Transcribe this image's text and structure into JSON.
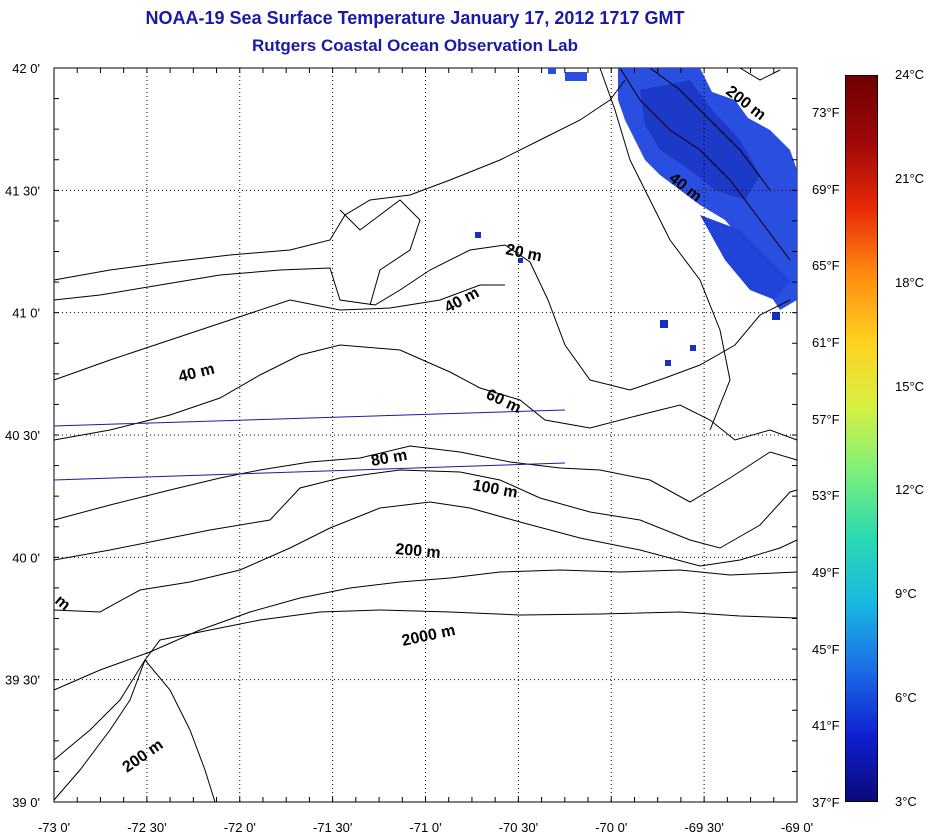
{
  "title": "NOAA-19 Sea Surface Temperature January 17, 2012 1717 GMT",
  "subtitle": "Rutgers Coastal Ocean Observation Lab",
  "map": {
    "lon_range": [
      -73,
      -69
    ],
    "lat_range": [
      39,
      42
    ],
    "grid": "dotted",
    "x_ticks": [
      "-73 0'",
      "-72 30'",
      "-72 0'",
      "-71 30'",
      "-71 0'",
      "-70 30'",
      "-70 0'",
      "-69 30'",
      "-69 0'"
    ],
    "y_ticks": [
      "42 0'",
      "41 30'",
      "41 0'",
      "40 30'",
      "40 0'",
      "39 30'",
      "39 0'"
    ],
    "contour_labels": [
      "200 m",
      "40 m",
      "20 m",
      "40 m",
      "40 m",
      "60 m",
      "80 m",
      "100 m",
      "200 m",
      "2000 m",
      "200 m",
      "m"
    ]
  },
  "colorbar": {
    "range_c": [
      3,
      24
    ],
    "colors": [
      "#0a0a7a",
      "#1020d0",
      "#1a6ee8",
      "#18b8e0",
      "#2ad9b0",
      "#7cf07a",
      "#d8f040",
      "#ffd020",
      "#ff8a10",
      "#e82808",
      "#a00808",
      "#700000"
    ],
    "fahrenheit_labels": [
      "73°F",
      "69°F",
      "65°F",
      "61°F",
      "57°F",
      "53°F",
      "49°F",
      "45°F",
      "41°F",
      "37°F"
    ],
    "celsius_labels": [
      "24°C",
      "21°C",
      "18°C",
      "15°C",
      "12°C",
      "9°C",
      "6°C",
      "3°C"
    ]
  }
}
